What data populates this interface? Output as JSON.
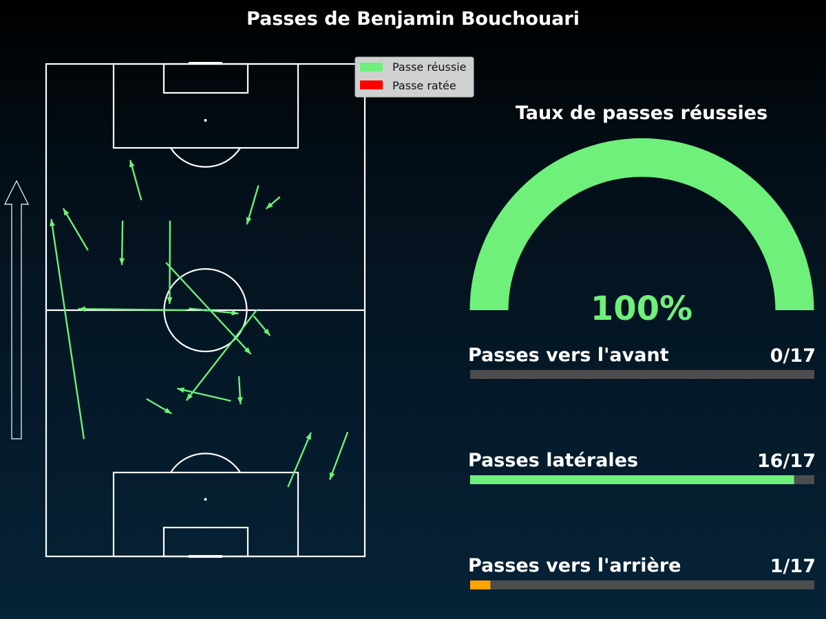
{
  "title": "Passes de Benjamin Bouchouari",
  "legend": [
    {
      "label": "Passe réussie",
      "color": "#6ef07a"
    },
    {
      "label": "Passe ratée",
      "color": "#ff0000"
    }
  ],
  "gauge": {
    "title": "Taux de passes réussies",
    "value_label": "100%",
    "fraction": 1.0,
    "fill_color": "#6ef07a"
  },
  "stats": [
    {
      "label": "Passes vers l'avant",
      "count_label": "0/17",
      "fraction": 0.0,
      "color": "#6ef07a"
    },
    {
      "label": "Passes latérales",
      "count_label": "16/17",
      "fraction": 0.9412,
      "color": "#6ef07a"
    },
    {
      "label": "Passes vers l'arrière",
      "count_label": "1/17",
      "fraction": 0.0588,
      "color": "#ffa500"
    }
  ],
  "bar_track_color": "#4d4d4d",
  "chart_data": {
    "type": "scatter",
    "title": "Passes de Benjamin Bouchouari",
    "pitch": {
      "length": 120,
      "width": 80,
      "attack_direction": "up"
    },
    "series": [
      {
        "name": "Passe réussie",
        "color": "#6ef07a",
        "passes": [
          {
            "x": 28.6,
            "y": 9.5,
            "end_x": 82.2,
            "end_y": 1.3
          },
          {
            "x": 86.8,
            "y": 23.9,
            "end_x": 96.6,
            "end_y": 21.1
          },
          {
            "x": 81.8,
            "y": 19.2,
            "end_x": 71.0,
            "end_y": 19.0
          },
          {
            "x": 74.6,
            "y": 10.5,
            "end_x": 84.8,
            "end_y": 4.3
          },
          {
            "x": 81.8,
            "y": 31.1,
            "end_x": 61.5,
            "end_y": 31.0
          },
          {
            "x": 60.4,
            "y": 35.8,
            "end_x": 59.2,
            "end_y": 48.3
          },
          {
            "x": 90.4,
            "y": 53.3,
            "end_x": 80.9,
            "end_y": 50.4
          },
          {
            "x": 71.6,
            "y": 30.1,
            "end_x": 49.3,
            "end_y": 51.4
          },
          {
            "x": 60.0,
            "y": 35.1,
            "end_x": 60.3,
            "end_y": 8.1
          },
          {
            "x": 87.6,
            "y": 58.7,
            "end_x": 84.7,
            "end_y": 55.2
          },
          {
            "x": 37.9,
            "y": 46.4,
            "end_x": 40.9,
            "end_y": 32.9
          },
          {
            "x": 60.1,
            "y": 52.9,
            "end_x": 38.0,
            "end_y": 35.2
          },
          {
            "x": 58.6,
            "y": 52.1,
            "end_x": 53.8,
            "end_y": 56.2
          },
          {
            "x": 43.9,
            "y": 48.4,
            "end_x": 37.1,
            "end_y": 48.8
          },
          {
            "x": 30.3,
            "y": 75.7,
            "end_x": 18.7,
            "end_y": 71.2
          },
          {
            "x": 16.9,
            "y": 60.7,
            "end_x": 30.2,
            "end_y": 66.5
          },
          {
            "x": 38.4,
            "y": 25.2,
            "end_x": 34.8,
            "end_y": 31.5
          }
        ]
      }
    ],
    "legend_position": "top-right"
  }
}
